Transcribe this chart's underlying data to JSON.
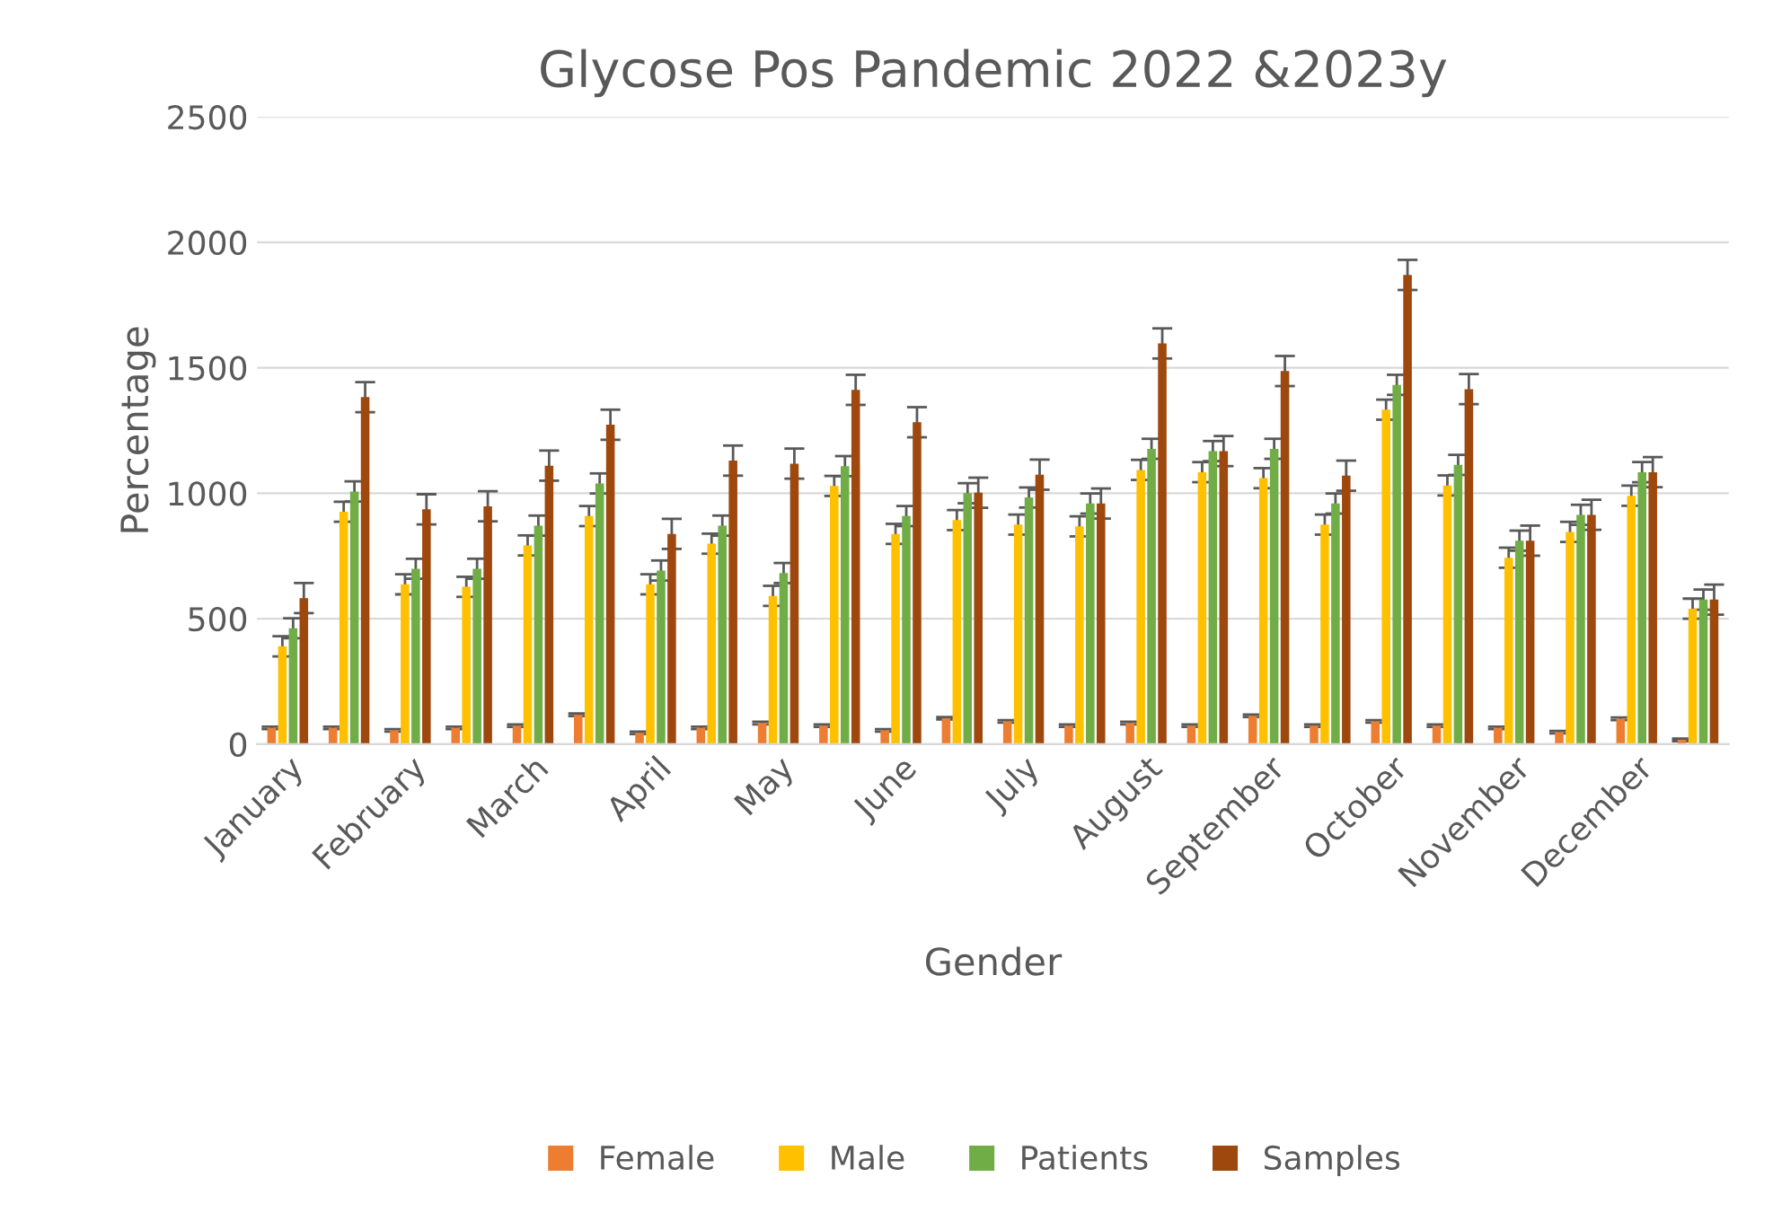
{
  "chart_data": {
    "type": "bar",
    "title": "Glycose Pos Pandemic 2022 &2023y",
    "xlabel": "Gender",
    "ylabel": "Percentage",
    "categories": [
      "January",
      null,
      "February",
      null,
      "March",
      null,
      "April",
      null,
      "May",
      null,
      "June",
      null,
      "July",
      null,
      "August",
      null,
      "September",
      null,
      "October",
      null,
      "November",
      null,
      "December",
      null
    ],
    "series": [
      {
        "name": "Female",
        "color": "#ed7d31",
        "values": [
          65,
          65,
          55,
          65,
          74,
          117,
          45,
          65,
          84,
          74,
          55,
          103,
          91,
          74,
          84,
          74,
          113,
          74,
          91,
          74,
          65,
          48,
          101,
          17
        ],
        "errors": [
          5,
          5,
          5,
          5,
          5,
          5,
          5,
          5,
          5,
          5,
          5,
          5,
          5,
          5,
          5,
          5,
          5,
          5,
          5,
          5,
          5,
          5,
          5,
          5
        ]
      },
      {
        "name": "Male",
        "color": "#ffc000",
        "values": [
          390,
          926,
          637,
          627,
          792,
          909,
          637,
          799,
          591,
          1029,
          838,
          893,
          875,
          868,
          1093,
          1084,
          1060,
          875,
          1333,
          1031,
          743,
          846,
          990,
          540
        ],
        "errors": [
          40,
          40,
          40,
          40,
          40,
          40,
          40,
          40,
          40,
          40,
          40,
          40,
          40,
          40,
          40,
          40,
          40,
          40,
          40,
          40,
          40,
          40,
          40,
          40
        ]
      },
      {
        "name": "Patients",
        "color": "#70ad47",
        "values": [
          462,
          1007,
          699,
          699,
          871,
          1039,
          692,
          871,
          682,
          1108,
          909,
          1000,
          983,
          959,
          1177,
          1168,
          1177,
          959,
          1432,
          1113,
          811,
          914,
          1084,
          576
        ],
        "errors": [
          40,
          40,
          40,
          40,
          40,
          40,
          40,
          40,
          40,
          40,
          40,
          40,
          40,
          40,
          40,
          40,
          40,
          40,
          40,
          40,
          40,
          40,
          40,
          40
        ]
      },
      {
        "name": "Samples",
        "color": "#9e480e",
        "values": [
          582,
          1383,
          936,
          948,
          1110,
          1273,
          838,
          1130,
          1118,
          1412,
          1283,
          1002,
          1074,
          959,
          1597,
          1168,
          1487,
          1070,
          1870,
          1415,
          811,
          914,
          1084,
          576
        ],
        "errors": [
          60,
          60,
          60,
          60,
          60,
          60,
          60,
          60,
          60,
          60,
          60,
          60,
          60,
          60,
          60,
          60,
          60,
          60,
          60,
          60,
          60,
          60,
          60,
          60
        ]
      }
    ],
    "ylim": [
      0,
      2500
    ],
    "yticks": [
      0,
      500,
      1000,
      1500,
      2000,
      2500
    ],
    "grid": "y",
    "legend": "bottom"
  }
}
